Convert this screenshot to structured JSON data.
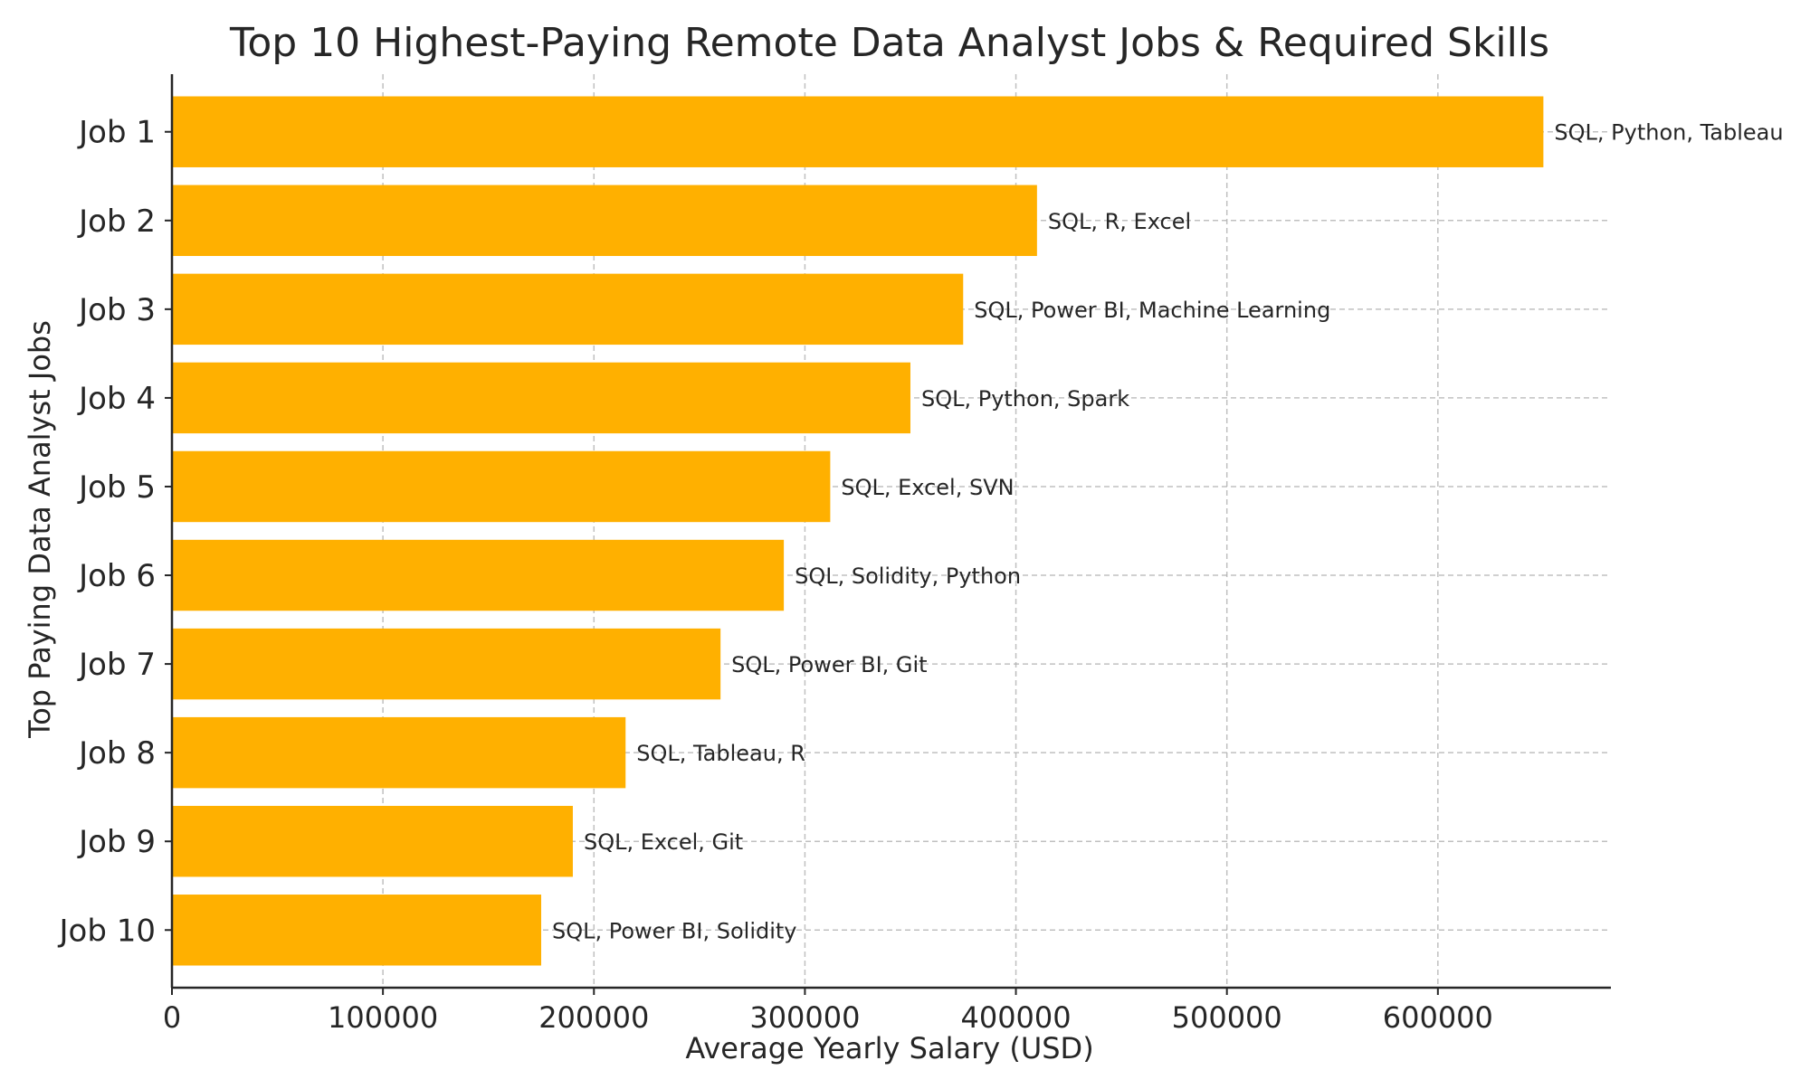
{
  "chart_data": {
    "type": "bar",
    "orientation": "horizontal",
    "title": "Top 10 Highest-Paying Remote Data Analyst Jobs & Required Skills",
    "xlabel": "Average Yearly Salary (USD)",
    "ylabel": "Top Paying Data Analyst Jobs",
    "categories": [
      "Job 1",
      "Job 2",
      "Job 3",
      "Job 4",
      "Job 5",
      "Job 6",
      "Job 7",
      "Job 8",
      "Job 9",
      "Job 10"
    ],
    "values": [
      650000,
      410000,
      375000,
      350000,
      312000,
      290000,
      260000,
      215000,
      190000,
      175000
    ],
    "annotations": [
      "SQL, Python, Tableau",
      "SQL, R, Excel",
      "SQL, Power BI, Machine Learning",
      "SQL, Python, Spark",
      "SQL, Excel, SVN",
      "SQL, Solidity, Python",
      "SQL, Power BI, Git",
      "SQL, Tableau, R",
      "SQL, Excel, Git",
      "SQL, Power BI, Solidity"
    ],
    "xticks": [
      "0",
      "100000",
      "200000",
      "300000",
      "400000",
      "500000",
      "600000"
    ],
    "xlim": [
      0,
      682000
    ],
    "grid": true,
    "bar_color": "#FFB000"
  }
}
